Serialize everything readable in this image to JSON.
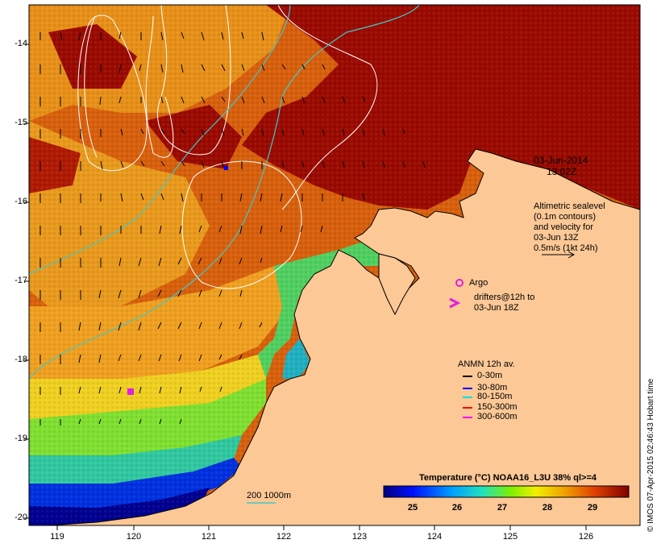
{
  "map": {
    "date": "03-Jun-2014",
    "time": "13:02Z",
    "x_ticks": [
      "119",
      "120",
      "121",
      "122",
      "123",
      "124",
      "125",
      "126"
    ],
    "y_ticks": [
      "-14",
      "-15",
      "-16",
      "-17",
      "-18",
      "-19",
      "-20"
    ],
    "altimetry_lines": [
      "Altimetric sealevel",
      "(0.1m contours)",
      "and velocity for",
      "03-Jun 13Z",
      "0.5m/s (1kt 24h)"
    ],
    "argo_label": "Argo",
    "drifters_lines": [
      "drifters@12h to",
      "03-Jun 18Z"
    ],
    "anmn_title": "ANMN 12h av.",
    "anmn_items": [
      {
        "label": "0-30m",
        "color": "#000000"
      },
      {
        "label": "30-80m",
        "color": "#0000ff"
      },
      {
        "label": "80-150m",
        "color": "#00dddd"
      },
      {
        "label": "150-300m",
        "color": "#ff0000"
      },
      {
        "label": "300-600m",
        "color": "#ff00ff"
      }
    ],
    "bathy_label": "200  1000m",
    "colorbar": {
      "title": "Temperature (°C) NOAA16_L3U 38% ql>=4",
      "ticks": [
        "25",
        "26",
        "27",
        "28",
        "29"
      ]
    },
    "credit": "© IMOS 07-Apr-2015 02:46:43 Hobart time",
    "colors": {
      "land": "#fcc896",
      "warm": "#9a0a00",
      "orange": "#e07a10",
      "contour": "#ffffff",
      "isobath": "#40c8c8",
      "argo": "#e020e0"
    }
  }
}
